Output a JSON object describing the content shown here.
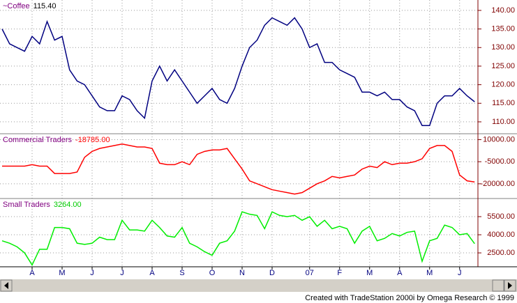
{
  "chart_data": {
    "type": "line",
    "grid": true,
    "categories": [
      null,
      null,
      null,
      null,
      "A",
      null,
      null,
      null,
      "M",
      null,
      null,
      null,
      "J",
      null,
      null,
      null,
      "J",
      null,
      null,
      null,
      "A",
      null,
      null,
      null,
      "S",
      null,
      null,
      null,
      "O",
      null,
      null,
      null,
      "N",
      null,
      null,
      null,
      "D",
      null,
      null,
      null,
      null,
      "07",
      null,
      null,
      null,
      "F",
      null,
      null,
      null,
      "M",
      null,
      null,
      null,
      "A",
      null,
      null,
      null,
      "M",
      null,
      null,
      null,
      "J",
      null,
      null
    ],
    "panes": [
      {
        "title": "~Coffee",
        "readout": "115.40",
        "color": "#000080",
        "readout_color": "#000000",
        "ylim": [
          106.8,
          142.8
        ],
        "yticks": [
          {
            "value": 110,
            "label": "110.00"
          },
          {
            "value": 115,
            "label": "115.00"
          },
          {
            "value": 120,
            "label": "120.00"
          },
          {
            "value": 125,
            "label": "125.00"
          },
          {
            "value": 130,
            "label": "130.00"
          },
          {
            "value": 135,
            "label": "135.00"
          },
          {
            "value": 140,
            "label": "140.00"
          }
        ],
        "values": [
          135,
          131,
          130,
          129,
          133,
          131,
          137,
          132,
          133,
          124,
          121,
          120,
          117,
          114,
          113,
          113,
          117,
          116,
          113,
          111,
          121,
          125,
          121,
          124,
          121,
          118,
          115,
          117,
          119,
          116,
          115,
          119,
          125,
          130,
          132,
          136,
          138,
          137,
          136,
          138,
          135,
          130,
          131,
          126,
          126,
          124,
          123,
          122,
          118,
          118,
          117,
          118,
          116,
          116,
          114,
          113,
          109,
          109,
          115,
          117,
          117,
          119,
          117,
          115.4
        ]
      },
      {
        "title": "Commercial Traders",
        "readout": "-18785.00",
        "color": "#ff0000",
        "readout_color": "#ff0000",
        "ylim": [
          -30000,
          14000
        ],
        "yticks": [
          {
            "value": -20000,
            "label": "-20000.00"
          },
          {
            "value": -5000,
            "label": "-5000.00"
          },
          {
            "value": 10000,
            "label": "10000.00"
          }
        ],
        "values": [
          -8000,
          -8000,
          -8000,
          -8000,
          -7000,
          -8000,
          -8000,
          -13000,
          -13000,
          -13000,
          -12000,
          -2000,
          2000,
          4000,
          5000,
          6000,
          7000,
          6000,
          5000,
          5000,
          4000,
          -6000,
          -7000,
          -7000,
          -5000,
          -7000,
          0,
          2000,
          3000,
          3000,
          4000,
          -3000,
          -10000,
          -18000,
          -20000,
          -22000,
          -24000,
          -25000,
          -26000,
          -27000,
          -26000,
          -23000,
          -20000,
          -18000,
          -15000,
          -16000,
          -15000,
          -14000,
          -10000,
          -8000,
          -9000,
          -5000,
          -7000,
          -6000,
          -6000,
          -5000,
          -3000,
          4000,
          6000,
          6000,
          2000,
          -14000,
          -18000,
          -18785
        ]
      },
      {
        "title": "Small Traders",
        "readout": "3264.00",
        "color": "#00ee00",
        "readout_color": "#00cc00",
        "ylim": [
          1350,
          7000
        ],
        "yticks": [
          {
            "value": 2500,
            "label": "2500.00"
          },
          {
            "value": 4000,
            "label": "4000.00"
          },
          {
            "value": 5500,
            "label": "5500.00"
          }
        ],
        "values": [
          3500,
          3300,
          3000,
          2500,
          1500,
          2800,
          2800,
          4600,
          4600,
          4500,
          3300,
          3200,
          3300,
          3800,
          3600,
          3600,
          5200,
          4400,
          4400,
          4300,
          5200,
          4600,
          3900,
          3800,
          4600,
          3300,
          3000,
          2600,
          2300,
          3300,
          3500,
          4300,
          5900,
          5700,
          5600,
          4500,
          5900,
          5600,
          5500,
          5600,
          5200,
          5500,
          4700,
          5200,
          4500,
          4700,
          4500,
          3300,
          4300,
          4700,
          3500,
          3700,
          4100,
          3900,
          4200,
          4300,
          1800,
          3500,
          3700,
          4800,
          4600,
          4000,
          4100,
          3264
        ]
      }
    ]
  },
  "footer": "Created with TradeStation 2000i by Omega Research © 1999"
}
